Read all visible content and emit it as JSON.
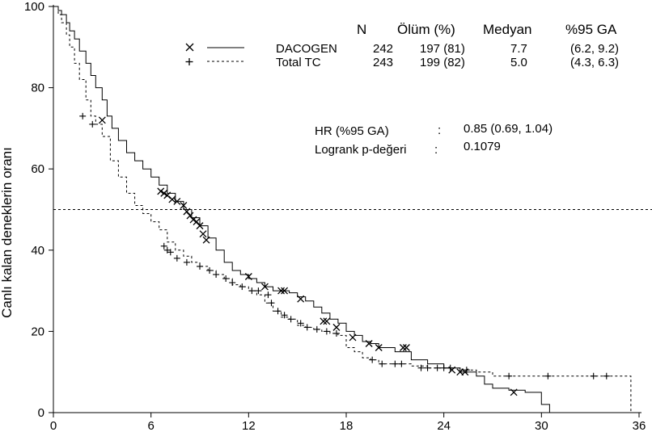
{
  "chart_data": {
    "type": "line",
    "ylabel": "Canlı kalan deneklerin oranı",
    "xlim": [
      0,
      36
    ],
    "ylim": [
      0,
      100
    ],
    "x_ticks": [
      0,
      6,
      12,
      18,
      24,
      30,
      36
    ],
    "y_ticks": [
      0,
      20,
      40,
      60,
      80,
      100
    ],
    "y_tick_labels": [
      "0",
      "20",
      "40",
      "60",
      "80",
      "100"
    ],
    "reference_line_y": 50,
    "legend": {
      "headers": [
        "N",
        "Ölüm (%)",
        "Medyan",
        "%95 GA"
      ],
      "rows": [
        {
          "marker": "×",
          "name": "DACOGEN",
          "n": "242",
          "deaths": "197 (81)",
          "median": "7.7",
          "ci": "(6.2, 9.2)"
        },
        {
          "marker": "+",
          "name": "Total TC",
          "n": "243",
          "deaths": "199 (82)",
          "median": "5.0",
          "ci": "(4.3, 6.3)"
        }
      ]
    },
    "annotations": [
      {
        "label": "HR (%95 GA)",
        "sep": ":",
        "value": "0.85 (0.69, 1.04)"
      },
      {
        "label": "Logrank p-değeri",
        "sep": ":",
        "value": "0.1079"
      }
    ],
    "series": [
      {
        "name": "DACOGEN",
        "style": "solid",
        "censor_marker": "x",
        "points": [
          [
            0,
            100
          ],
          [
            0.3,
            99
          ],
          [
            0.5,
            98
          ],
          [
            0.8,
            96
          ],
          [
            1,
            94
          ],
          [
            1.3,
            92
          ],
          [
            1.6,
            89
          ],
          [
            2,
            86
          ],
          [
            2.3,
            83
          ],
          [
            2.6,
            80
          ],
          [
            3,
            77
          ],
          [
            3.3,
            73
          ],
          [
            3.6,
            70
          ],
          [
            4,
            67
          ],
          [
            4.5,
            64
          ],
          [
            5,
            62
          ],
          [
            5.5,
            60
          ],
          [
            6,
            58
          ],
          [
            6.5,
            56
          ],
          [
            7,
            54
          ],
          [
            7.5,
            52
          ],
          [
            8,
            50
          ],
          [
            8.5,
            48
          ],
          [
            9,
            46
          ],
          [
            9.5,
            43
          ],
          [
            10,
            40
          ],
          [
            10.5,
            37
          ],
          [
            11,
            35
          ],
          [
            11.5,
            34
          ],
          [
            12,
            33
          ],
          [
            12.5,
            32
          ],
          [
            13,
            31
          ],
          [
            13.5,
            30
          ],
          [
            14,
            30
          ],
          [
            14.5,
            29.5
          ],
          [
            15,
            28.5
          ],
          [
            15.5,
            27.5
          ],
          [
            16,
            26
          ],
          [
            16.5,
            24.5
          ],
          [
            17,
            23
          ],
          [
            17.5,
            22
          ],
          [
            18,
            20
          ],
          [
            18.5,
            19
          ],
          [
            19,
            17.5
          ],
          [
            19.5,
            17
          ],
          [
            20,
            16
          ],
          [
            21,
            15
          ],
          [
            22,
            13
          ],
          [
            23,
            12
          ],
          [
            24,
            11
          ],
          [
            25,
            10
          ],
          [
            26,
            9
          ],
          [
            26.5,
            7
          ],
          [
            27,
            6
          ],
          [
            28,
            5.5
          ],
          [
            29,
            5
          ],
          [
            30,
            2
          ],
          [
            30.5,
            0
          ]
        ],
        "censored": [
          [
            3,
            72
          ],
          [
            6.6,
            54.5
          ],
          [
            6.8,
            54
          ],
          [
            7,
            53.5
          ],
          [
            7.3,
            52.5
          ],
          [
            7.6,
            52
          ],
          [
            8,
            51
          ],
          [
            8.2,
            49.5
          ],
          [
            8.4,
            48.5
          ],
          [
            8.6,
            47.5
          ],
          [
            8.8,
            47
          ],
          [
            9,
            46
          ],
          [
            9.2,
            44
          ],
          [
            9.4,
            42.5
          ],
          [
            12,
            33.5
          ],
          [
            13,
            31
          ],
          [
            14,
            30
          ],
          [
            14.2,
            30
          ],
          [
            15.2,
            28
          ],
          [
            16.6,
            22.5
          ],
          [
            16.8,
            22.5
          ],
          [
            17.4,
            21
          ],
          [
            18.4,
            18.5
          ],
          [
            19.4,
            17
          ],
          [
            20,
            16
          ],
          [
            21.5,
            16
          ],
          [
            21.7,
            16
          ],
          [
            24.5,
            10.5
          ],
          [
            25,
            10
          ],
          [
            25.3,
            10
          ],
          [
            28.3,
            5
          ]
        ]
      },
      {
        "name": "Total TC",
        "style": "dashed",
        "censor_marker": "+",
        "points": [
          [
            0,
            100
          ],
          [
            0.3,
            98
          ],
          [
            0.5,
            96
          ],
          [
            0.8,
            93
          ],
          [
            1,
            90
          ],
          [
            1.3,
            86
          ],
          [
            1.6,
            82
          ],
          [
            2,
            77
          ],
          [
            2.3,
            73
          ],
          [
            2.6,
            71
          ],
          [
            3,
            68
          ],
          [
            3.5,
            62
          ],
          [
            4,
            58
          ],
          [
            4.5,
            54
          ],
          [
            5,
            51
          ],
          [
            5.5,
            49
          ],
          [
            6,
            47
          ],
          [
            6.5,
            45
          ],
          [
            7,
            42
          ],
          [
            7.5,
            40
          ],
          [
            8,
            38.5
          ],
          [
            8.5,
            37
          ],
          [
            9,
            36
          ],
          [
            9.5,
            35
          ],
          [
            10,
            34
          ],
          [
            10.5,
            33
          ],
          [
            11,
            31.5
          ],
          [
            11.5,
            31
          ],
          [
            12,
            30
          ],
          [
            12.5,
            29
          ],
          [
            13,
            27
          ],
          [
            13.5,
            25
          ],
          [
            14,
            23.5
          ],
          [
            14.5,
            23
          ],
          [
            15,
            21.5
          ],
          [
            15.5,
            21
          ],
          [
            16,
            20.5
          ],
          [
            16.5,
            20
          ],
          [
            17,
            19.5
          ],
          [
            17.5,
            19
          ],
          [
            18,
            16
          ],
          [
            18.5,
            15
          ],
          [
            19,
            13.5
          ],
          [
            19.5,
            13
          ],
          [
            20,
            12
          ],
          [
            21,
            12
          ],
          [
            22,
            11.5
          ],
          [
            23,
            11
          ],
          [
            24,
            11
          ],
          [
            25,
            10.5
          ],
          [
            26,
            10
          ],
          [
            27,
            9
          ],
          [
            35,
            9
          ],
          [
            35.5,
            9
          ],
          [
            35.5,
            0
          ]
        ],
        "censored": [
          [
            1.8,
            73
          ],
          [
            2.4,
            71
          ],
          [
            6.8,
            41
          ],
          [
            7,
            40
          ],
          [
            7.2,
            39.5
          ],
          [
            7.6,
            38
          ],
          [
            8.2,
            37
          ],
          [
            9,
            36
          ],
          [
            9.6,
            35
          ],
          [
            10,
            34
          ],
          [
            10.6,
            33
          ],
          [
            11,
            32
          ],
          [
            11.6,
            31
          ],
          [
            12.2,
            30
          ],
          [
            12.6,
            30
          ],
          [
            13.2,
            29
          ],
          [
            13.4,
            27
          ],
          [
            13.8,
            25
          ],
          [
            14.2,
            24
          ],
          [
            14.6,
            23
          ],
          [
            15.2,
            22
          ],
          [
            15.6,
            21
          ],
          [
            16.2,
            20.5
          ],
          [
            16.8,
            20
          ],
          [
            17.4,
            19.5
          ],
          [
            19.6,
            13
          ],
          [
            20.2,
            12
          ],
          [
            21,
            12
          ],
          [
            21.4,
            12
          ],
          [
            22.6,
            11
          ],
          [
            23,
            11
          ],
          [
            23.6,
            11
          ],
          [
            24,
            11
          ],
          [
            24.4,
            11
          ],
          [
            25.4,
            10.5
          ],
          [
            28,
            9
          ],
          [
            30.4,
            9
          ],
          [
            33.2,
            9
          ],
          [
            34,
            9
          ]
        ]
      }
    ]
  }
}
